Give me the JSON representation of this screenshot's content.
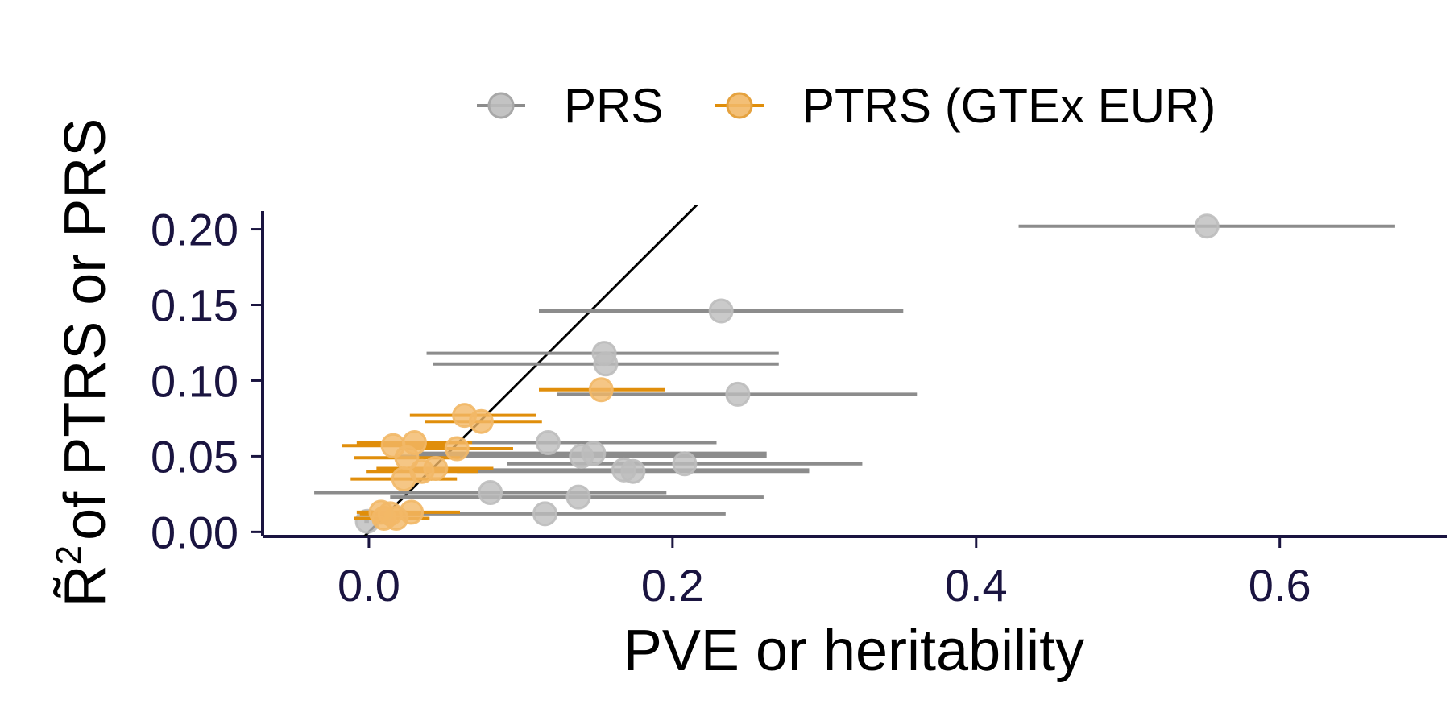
{
  "chart_data": {
    "type": "scatter",
    "title": "",
    "xlabel": "PVE or heritability",
    "ylabel": "of PTRS or PRS",
    "ylabel_symbol": "R̃",
    "ylabel_superscript": "2",
    "xlim": [
      -0.07,
      0.71
    ],
    "ylim": [
      -0.003,
      0.212
    ],
    "x_ticks": [
      0.0,
      0.2,
      0.4,
      0.6
    ],
    "x_tick_labels": [
      "0.0",
      "0.2",
      "0.4",
      "0.6"
    ],
    "y_ticks": [
      0.0,
      0.05,
      0.1,
      0.15,
      0.2
    ],
    "y_tick_labels": [
      "0.00",
      "0.05",
      "0.10",
      "0.15",
      "0.20"
    ],
    "grid": false,
    "legend_position": "top",
    "reference_line": {
      "slope": 1,
      "intercept": 0,
      "color": "#000000"
    },
    "series": [
      {
        "name": "PRS",
        "color": "#8c8c8c",
        "point_color": "#bdbdbd",
        "points": [
          {
            "x": 0.552,
            "y": 0.202,
            "xmin": 0.428,
            "xmax": 0.676
          },
          {
            "x": 0.232,
            "y": 0.146,
            "xmin": 0.112,
            "xmax": 0.352
          },
          {
            "x": 0.155,
            "y": 0.118,
            "xmin": 0.038,
            "xmax": 0.27
          },
          {
            "x": 0.156,
            "y": 0.111,
            "xmin": 0.042,
            "xmax": 0.27
          },
          {
            "x": 0.243,
            "y": 0.091,
            "xmin": 0.124,
            "xmax": 0.361
          },
          {
            "x": 0.118,
            "y": 0.059,
            "xmin": 0.004,
            "xmax": 0.229
          },
          {
            "x": 0.148,
            "y": 0.052,
            "xmin": 0.033,
            "xmax": 0.262
          },
          {
            "x": 0.14,
            "y": 0.05,
            "xmin": 0.02,
            "xmax": 0.262
          },
          {
            "x": 0.208,
            "y": 0.045,
            "xmin": 0.091,
            "xmax": 0.325
          },
          {
            "x": 0.168,
            "y": 0.041,
            "xmin": 0.045,
            "xmax": 0.29
          },
          {
            "x": 0.174,
            "y": 0.04,
            "xmin": 0.058,
            "xmax": 0.29
          },
          {
            "x": 0.08,
            "y": 0.026,
            "xmin": -0.036,
            "xmax": 0.196
          },
          {
            "x": 0.138,
            "y": 0.023,
            "xmin": 0.014,
            "xmax": 0.26
          },
          {
            "x": 0.116,
            "y": 0.012,
            "xmin": -0.004,
            "xmax": 0.235
          },
          {
            "x": -0.001,
            "y": 0.007,
            "xmin": -0.003,
            "xmax": 0.0
          }
        ]
      },
      {
        "name": "PTRS (GTEx EUR)",
        "color": "#e08e0b",
        "point_color": "#f2b867",
        "points": [
          {
            "x": 0.153,
            "y": 0.094,
            "xmin": 0.112,
            "xmax": 0.195
          },
          {
            "x": 0.063,
            "y": 0.077,
            "xmin": 0.027,
            "xmax": 0.11
          },
          {
            "x": 0.074,
            "y": 0.073,
            "xmin": 0.037,
            "xmax": 0.114
          },
          {
            "x": 0.03,
            "y": 0.059,
            "xmin": -0.008,
            "xmax": 0.068
          },
          {
            "x": 0.016,
            "y": 0.057,
            "xmin": -0.018,
            "xmax": 0.05
          },
          {
            "x": 0.058,
            "y": 0.055,
            "xmin": 0.02,
            "xmax": 0.095
          },
          {
            "x": 0.025,
            "y": 0.049,
            "xmin": -0.01,
            "xmax": 0.06
          },
          {
            "x": 0.044,
            "y": 0.042,
            "xmin": 0.005,
            "xmax": 0.082
          },
          {
            "x": 0.035,
            "y": 0.04,
            "xmin": -0.002,
            "xmax": 0.072
          },
          {
            "x": 0.023,
            "y": 0.035,
            "xmin": -0.012,
            "xmax": 0.058
          },
          {
            "x": 0.028,
            "y": 0.013,
            "xmin": -0.004,
            "xmax": 0.06
          },
          {
            "x": 0.014,
            "y": 0.012,
            "xmin": -0.006,
            "xmax": 0.034
          },
          {
            "x": 0.01,
            "y": 0.009,
            "xmin": -0.01,
            "xmax": 0.03
          },
          {
            "x": 0.018,
            "y": 0.009,
            "xmin": -0.004,
            "xmax": 0.04
          },
          {
            "x": 0.008,
            "y": 0.013,
            "xmin": -0.008,
            "xmax": 0.025
          }
        ]
      }
    ]
  }
}
